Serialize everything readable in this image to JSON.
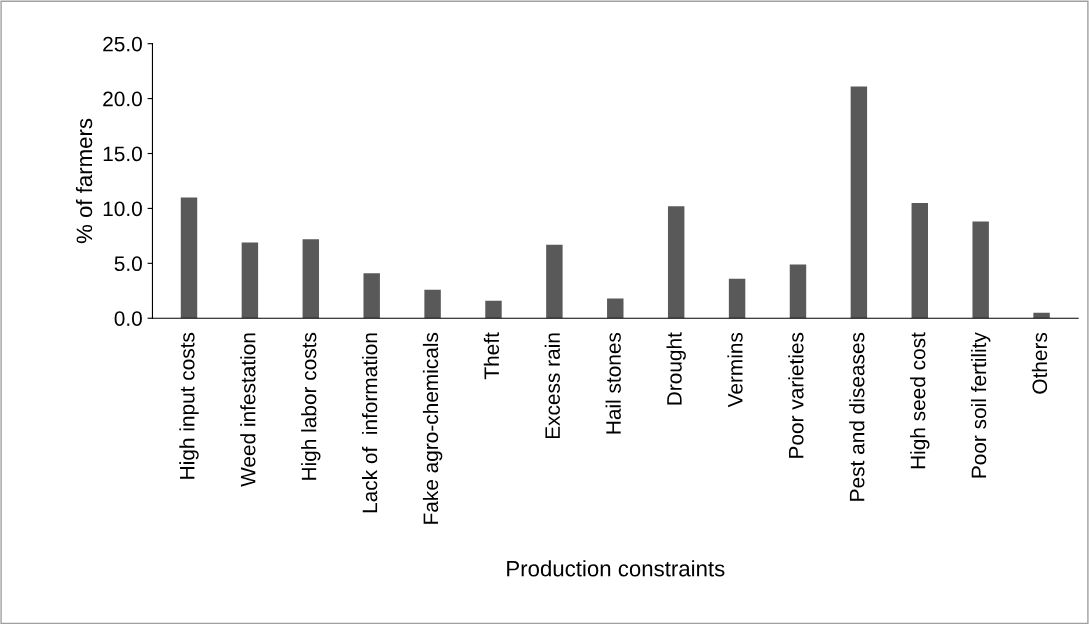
{
  "chart_data": {
    "type": "bar",
    "xlabel": "Production constraints",
    "ylabel": "% of farmers",
    "categories": [
      "High input costs",
      "Weed infestation",
      "High labor costs",
      "Lack of  information",
      "Fake agro-chemicals",
      "Theft",
      "Excess rain",
      "Hail stones",
      "Drought",
      "Vermins",
      "Poor varieties",
      "Pest and diseases",
      "High seed cost",
      "Poor soil fertility",
      "Others"
    ],
    "values": [
      11.0,
      6.9,
      7.2,
      4.1,
      2.6,
      1.6,
      6.7,
      1.8,
      10.2,
      3.6,
      4.9,
      21.1,
      10.5,
      8.8,
      0.5
    ],
    "color": "#595959",
    "ylim": [
      0,
      25
    ],
    "yticks": [
      {
        "value": 0,
        "label": "0.0"
      },
      {
        "value": 5,
        "label": "5.0"
      },
      {
        "value": 10,
        "label": "10.0"
      },
      {
        "value": 15,
        "label": "15.0"
      },
      {
        "value": 20,
        "label": "20.0"
      },
      {
        "value": 25,
        "label": "25.0"
      }
    ],
    "grid": false,
    "legend": false
  }
}
